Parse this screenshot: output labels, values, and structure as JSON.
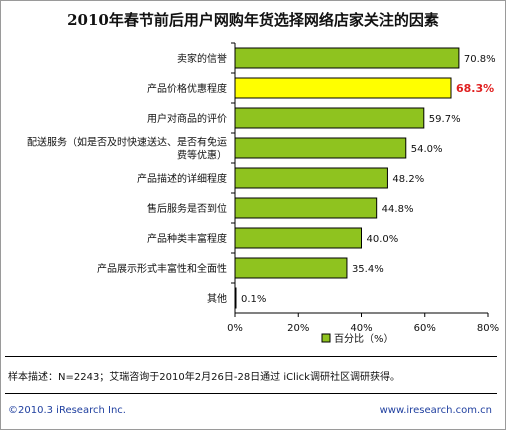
{
  "chart_data": {
    "type": "bar",
    "orientation": "horizontal",
    "title": "2010年春节前后用户网购年货选择网络店家关注的因素",
    "categories": [
      "卖家的信誉",
      "产品价格优惠程度",
      "用户对商品的评价",
      "配送服务（如是否及时快速送达、是否有免运费等优惠）",
      "产品描述的详细程度",
      "售后服务是否到位",
      "产品种类丰富程度",
      "产品展示形式丰富性和全面性",
      "其他"
    ],
    "category_lines": [
      [
        "卖家的信誉"
      ],
      [
        "产品价格优惠程度"
      ],
      [
        "用户对商品的评价"
      ],
      [
        "配送服务（如是否及时快速送达、是否有免运",
        "费等优惠）"
      ],
      [
        "产品描述的详细程度"
      ],
      [
        "售后服务是否到位"
      ],
      [
        "产品种类丰富程度"
      ],
      [
        "产品展示形式丰富性和全面性"
      ],
      [
        "其他"
      ]
    ],
    "series": [
      {
        "name": "百分比（%）",
        "values": [
          70.8,
          68.3,
          59.7,
          54.0,
          48.2,
          44.8,
          40.0,
          35.4,
          0.1
        ]
      }
    ],
    "value_labels": [
      "70.8%",
      "68.3%",
      "59.7%",
      "54.0%",
      "48.2%",
      "44.8%",
      "40.0%",
      "35.4%",
      "0.1%"
    ],
    "highlight_index": 1,
    "xlim": [
      0,
      80
    ],
    "xticks": [
      "0%",
      "20%",
      "40%",
      "60%",
      "80%"
    ],
    "legend": "bottom-center",
    "grid": false,
    "colors": {
      "bar": "#8fc31f",
      "highlight_bar": "#ffff00",
      "bar_border": "#000000",
      "highlight_label": "#e02020"
    }
  },
  "note": "样本描述：N=2243；艾瑞咨询于2010年2月26日-28日通过 iClick调研社区调研获得。",
  "footer": {
    "copyright": "©2010.3 iResearch Inc.",
    "website": "www.iresearch.com.cn"
  }
}
